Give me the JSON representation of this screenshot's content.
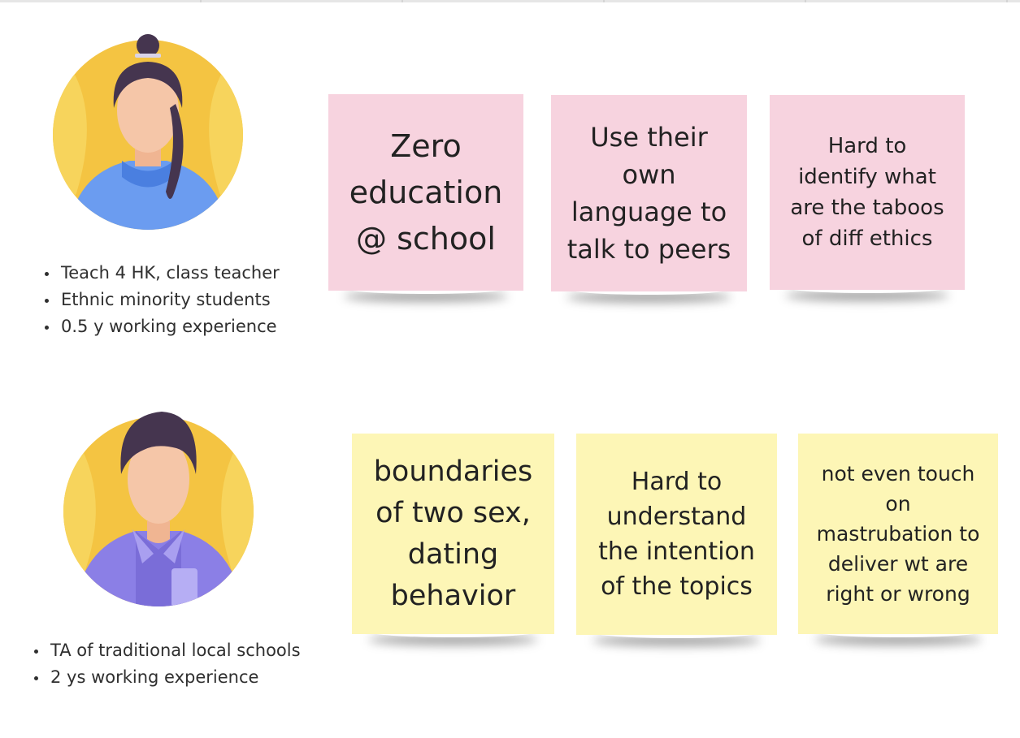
{
  "personas": [
    {
      "avatar": "female-teacher-avatar",
      "bullets": [
        "Teach 4 HK, class teacher",
        "Ethnic minority students",
        "0.5 y working experience"
      ],
      "notes": [
        "Zero\neducation\n@ school",
        "Use their\nown\nlanguage to\ntalk to peers",
        "Hard to\nidentify what\nare the taboos\nof diff ethics"
      ],
      "note_color": "#f7d3df"
    },
    {
      "avatar": "male-ta-avatar",
      "bullets": [
        "TA of traditional local schools",
        "2 ys working experience"
      ],
      "notes": [
        "boundaries\nof two sex,\ndating\nbehavior",
        "Hard to\nunderstand\nthe intention\nof the topics",
        "not even touch\non\nmastrubation to\ndeliver wt are\nright or wrong"
      ],
      "note_color": "#fdf6b6"
    }
  ]
}
